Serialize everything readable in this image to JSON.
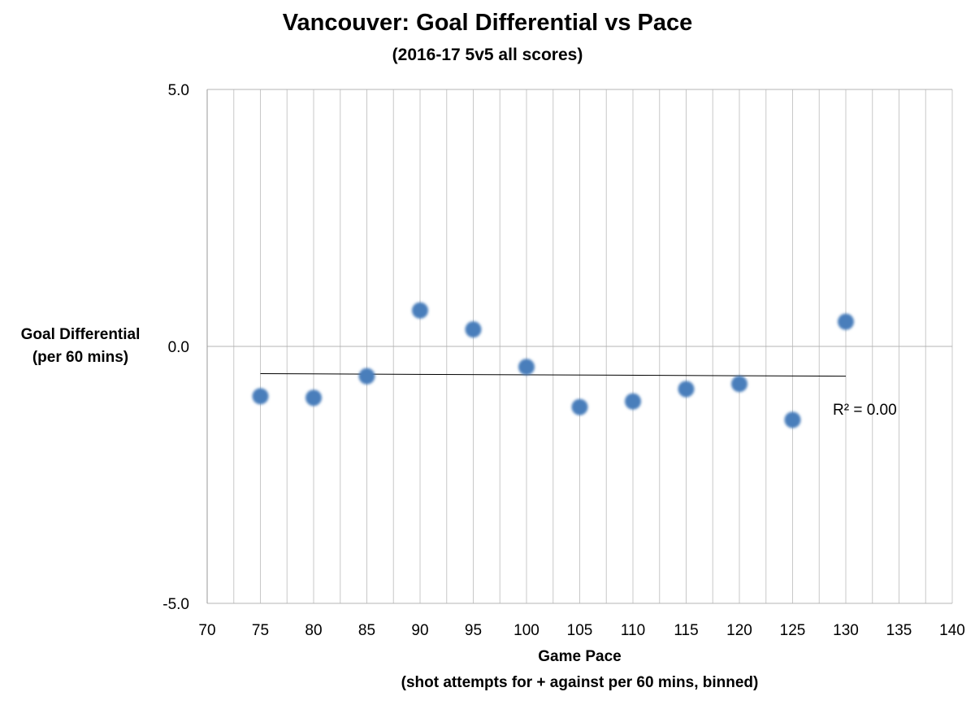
{
  "chart_data": {
    "type": "scatter",
    "title": "Vancouver: Goal Differential vs Pace",
    "subtitle": "(2016-17 5v5 all scores)",
    "ylabel_lines": [
      "Goal Differential",
      "(per 60 mins)"
    ],
    "xlabel": "Game Pace",
    "xlabel_sub": "(shot attempts for + against per 60 mins, binned)",
    "xlim": [
      70,
      140
    ],
    "ylim": [
      -5,
      5
    ],
    "x_ticks": [
      70,
      75,
      80,
      85,
      90,
      95,
      100,
      105,
      110,
      115,
      120,
      125,
      130,
      135,
      140
    ],
    "y_ticks": [
      -5,
      0,
      5
    ],
    "y_tick_labels": [
      "-5.0",
      "0.0",
      "5.0"
    ],
    "grid": {
      "vertical": true,
      "horizontal": true
    },
    "series": [
      {
        "points": [
          {
            "x": 75,
            "y": -0.97
          },
          {
            "x": 80,
            "y": -1.0
          },
          {
            "x": 85,
            "y": -0.58
          },
          {
            "x": 90,
            "y": 0.7
          },
          {
            "x": 95,
            "y": 0.33
          },
          {
            "x": 100,
            "y": -0.4
          },
          {
            "x": 105,
            "y": -1.18
          },
          {
            "x": 110,
            "y": -1.07
          },
          {
            "x": 115,
            "y": -0.83
          },
          {
            "x": 120,
            "y": -0.73
          },
          {
            "x": 125,
            "y": -1.43
          },
          {
            "x": 130,
            "y": 0.48
          }
        ],
        "color": "#4a7ebb"
      }
    ],
    "trendline": {
      "type": "linear",
      "from": {
        "x": 75,
        "y": -0.53
      },
      "to": {
        "x": 130,
        "y": -0.58
      },
      "color": "#000000",
      "r_squared_label": "R² = 0.00"
    }
  }
}
